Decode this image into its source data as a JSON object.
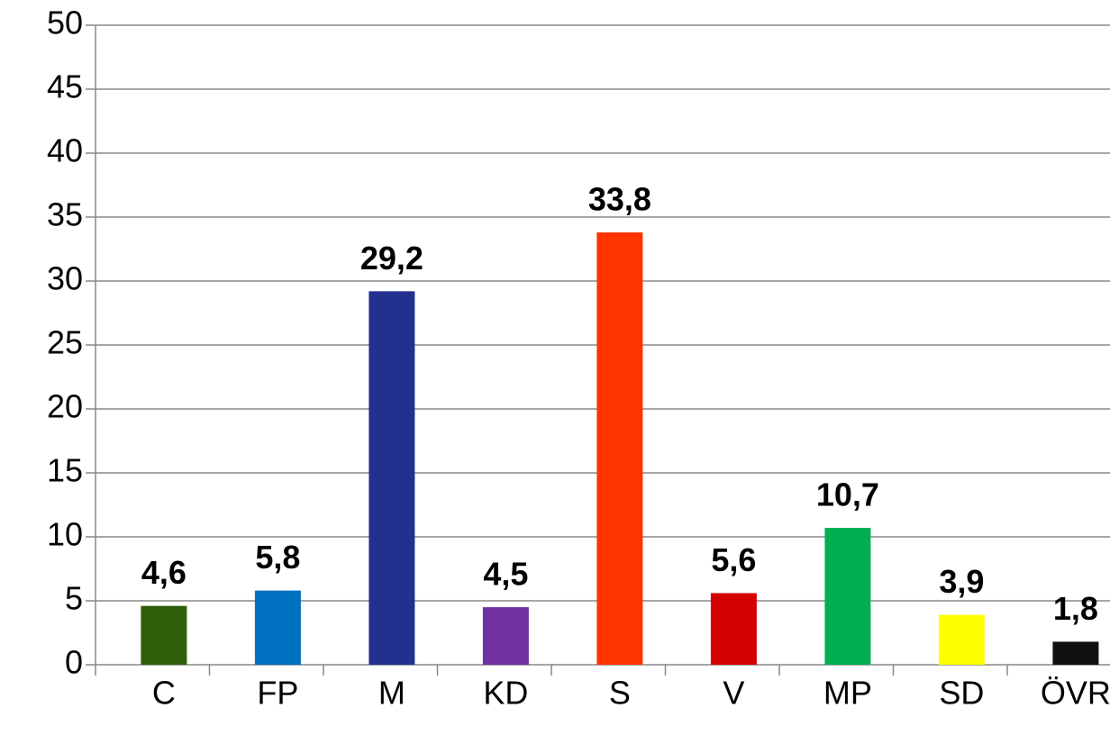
{
  "chart_data": {
    "type": "bar",
    "categories": [
      "C",
      "FP",
      "M",
      "KD",
      "S",
      "V",
      "MP",
      "SD",
      "ÖVR"
    ],
    "values": [
      4.6,
      5.8,
      29.2,
      4.5,
      33.8,
      5.6,
      10.7,
      3.9,
      1.8
    ],
    "value_labels": [
      "4,6",
      "5,8",
      "29,2",
      "4,5",
      "33,8",
      "5,6",
      "10,7",
      "3,9",
      "1,8"
    ],
    "colors": [
      "#2e5e0a",
      "#0070c0",
      "#22308f",
      "#7030a0",
      "#ff3300",
      "#d40000",
      "#00b050",
      "#ffff00",
      "#111111"
    ],
    "ylim": [
      0,
      50
    ],
    "yticks": [
      0,
      5,
      10,
      15,
      20,
      25,
      30,
      35,
      40,
      45,
      50
    ],
    "grid": true
  }
}
